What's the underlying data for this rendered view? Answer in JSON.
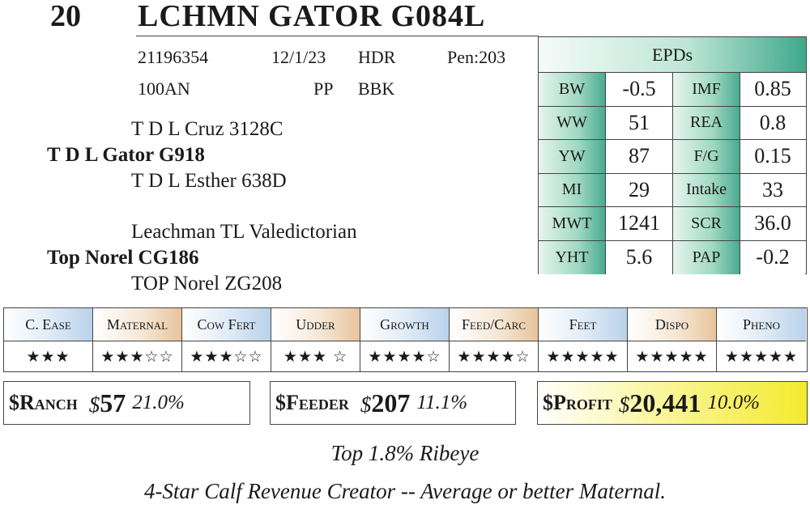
{
  "header": {
    "lot_number": "20",
    "animal_name": "LCHMN GATOR G084L"
  },
  "info": {
    "registration": "21196354",
    "birth_date": "12/1/23",
    "horn": "HDR",
    "pen": "Pen:203",
    "sire_code": "100AN",
    "polled": "PP",
    "color": "BBK"
  },
  "pedigree": {
    "sire_sire": "T D L Cruz 3128C",
    "sire": "T D L Gator G918",
    "sire_dam": "T D L Esther 638D",
    "dam_sire": "Leachman TL Valedictorian",
    "dam": "Top Norel CG186",
    "dam_dam": "TOP Norel ZG208"
  },
  "epds": {
    "title": "EPDs",
    "rows": [
      {
        "label1": "BW",
        "value1": "-0.5",
        "label2": "IMF",
        "value2": "0.85"
      },
      {
        "label1": "WW",
        "value1": "51",
        "label2": "REA",
        "value2": "0.8"
      },
      {
        "label1": "YW",
        "value1": "87",
        "label2": "F/G",
        "value2": "0.15"
      },
      {
        "label1": "MI",
        "value1": "29",
        "label2": "Intake",
        "value2": "33"
      },
      {
        "label1": "MWT",
        "value1": "1241",
        "label2": "SCR",
        "value2": "36.0"
      },
      {
        "label1": "YHT",
        "value1": "5.6",
        "label2": "PAP",
        "value2": "-0.2"
      }
    ]
  },
  "ratings": [
    {
      "label": "C. Ease",
      "stars": "★★★",
      "stars_value": 3
    },
    {
      "label": "Maternal",
      "stars": "★★★☆☆",
      "stars_value": 3
    },
    {
      "label": "Cow Fert",
      "stars": "★★★☆☆",
      "stars_value": 3
    },
    {
      "label": "Udder",
      "stars": "★★★ ☆",
      "stars_value": 3.5
    },
    {
      "label": "Growth",
      "stars": "★★★★☆",
      "stars_value": 4
    },
    {
      "label": "Feed/Carc",
      "stars": "★★★★☆",
      "stars_value": 4
    },
    {
      "label": "Feet",
      "stars": "★★★★★",
      "stars_value": 4.5
    },
    {
      "label": "Dispo",
      "stars": "★★★★★",
      "stars_value": 4.5
    },
    {
      "label": "Pheno",
      "stars": "★★★★★",
      "stars_value": 5
    }
  ],
  "indexes": {
    "ranch": {
      "label": "$Ranch",
      "currency": "$",
      "value": "57",
      "percent": "21.0%"
    },
    "feeder": {
      "label": "$Feeder",
      "currency": "$",
      "value": "207",
      "percent": "11.1%"
    },
    "profit": {
      "label": "$Profit",
      "currency": "$",
      "value": "20,441",
      "percent": "10.0%"
    }
  },
  "notes": {
    "line1": "Top 1.8% Ribeye",
    "line2": "4-Star Calf Revenue Creator -- Average or better Maternal."
  },
  "colors": {
    "epd_green": "#3fa88a",
    "profit_yellow": "#f4ea2e",
    "head_blue": "#b9d2ea",
    "head_tan": "#e8c49c"
  }
}
